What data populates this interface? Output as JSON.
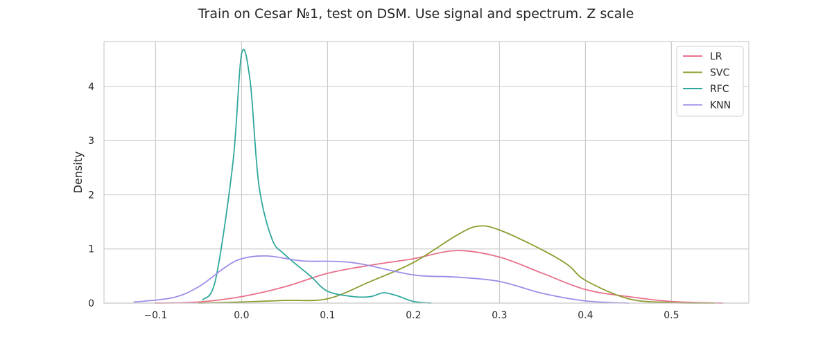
{
  "chart_data": {
    "type": "line",
    "title": "Train on Cesar №1, test on DSM. Use signal and spectrum. Z scale",
    "xlabel": "",
    "ylabel": "Density",
    "xlim": [
      -0.16,
      0.59
    ],
    "ylim": [
      0,
      4.83
    ],
    "xticks": [
      -0.1,
      0.0,
      0.1,
      0.2,
      0.3,
      0.4,
      0.5
    ],
    "xtick_labels": [
      "−0.1",
      "0.0",
      "0.1",
      "0.2",
      "0.3",
      "0.4",
      "0.5"
    ],
    "yticks": [
      0,
      1,
      2,
      3,
      4
    ],
    "ytick_labels": [
      "0",
      "1",
      "2",
      "3",
      "4"
    ],
    "grid": true,
    "legend_position": "top-right",
    "series": [
      {
        "name": "LR",
        "color": "#e8708a",
        "points": [
          [
            -0.1,
            0.0
          ],
          [
            -0.05,
            0.02
          ],
          [
            0.0,
            0.12
          ],
          [
            0.05,
            0.3
          ],
          [
            0.1,
            0.55
          ],
          [
            0.15,
            0.7
          ],
          [
            0.2,
            0.82
          ],
          [
            0.25,
            0.97
          ],
          [
            0.3,
            0.85
          ],
          [
            0.35,
            0.55
          ],
          [
            0.4,
            0.25
          ],
          [
            0.45,
            0.12
          ],
          [
            0.5,
            0.03
          ],
          [
            0.56,
            0.0
          ]
        ]
      },
      {
        "name": "SVC",
        "color": "#8c9c2f",
        "points": [
          [
            -0.05,
            0.0
          ],
          [
            0.0,
            0.02
          ],
          [
            0.05,
            0.05
          ],
          [
            0.1,
            0.08
          ],
          [
            0.15,
            0.4
          ],
          [
            0.2,
            0.75
          ],
          [
            0.25,
            1.25
          ],
          [
            0.275,
            1.42
          ],
          [
            0.3,
            1.35
          ],
          [
            0.35,
            0.98
          ],
          [
            0.38,
            0.7
          ],
          [
            0.4,
            0.42
          ],
          [
            0.45,
            0.08
          ],
          [
            0.5,
            0.01
          ],
          [
            0.55,
            0.0
          ]
        ]
      },
      {
        "name": "RFC",
        "color": "#2fa79c",
        "points": [
          [
            -0.045,
            0.06
          ],
          [
            -0.03,
            0.45
          ],
          [
            -0.01,
            2.6
          ],
          [
            0.0,
            4.6
          ],
          [
            0.01,
            4.1
          ],
          [
            0.02,
            2.2
          ],
          [
            0.035,
            1.2
          ],
          [
            0.05,
            0.9
          ],
          [
            0.08,
            0.5
          ],
          [
            0.1,
            0.22
          ],
          [
            0.13,
            0.12
          ],
          [
            0.15,
            0.12
          ],
          [
            0.165,
            0.19
          ],
          [
            0.18,
            0.14
          ],
          [
            0.2,
            0.03
          ],
          [
            0.22,
            0.0
          ]
        ]
      },
      {
        "name": "KNN",
        "color": "#a08be8",
        "points": [
          [
            -0.125,
            0.02
          ],
          [
            -0.08,
            0.1
          ],
          [
            -0.05,
            0.3
          ],
          [
            -0.02,
            0.65
          ],
          [
            0.0,
            0.82
          ],
          [
            0.03,
            0.87
          ],
          [
            0.07,
            0.78
          ],
          [
            0.11,
            0.77
          ],
          [
            0.14,
            0.72
          ],
          [
            0.2,
            0.52
          ],
          [
            0.25,
            0.48
          ],
          [
            0.3,
            0.4
          ],
          [
            0.35,
            0.18
          ],
          [
            0.4,
            0.04
          ],
          [
            0.45,
            0.0
          ]
        ]
      }
    ]
  }
}
